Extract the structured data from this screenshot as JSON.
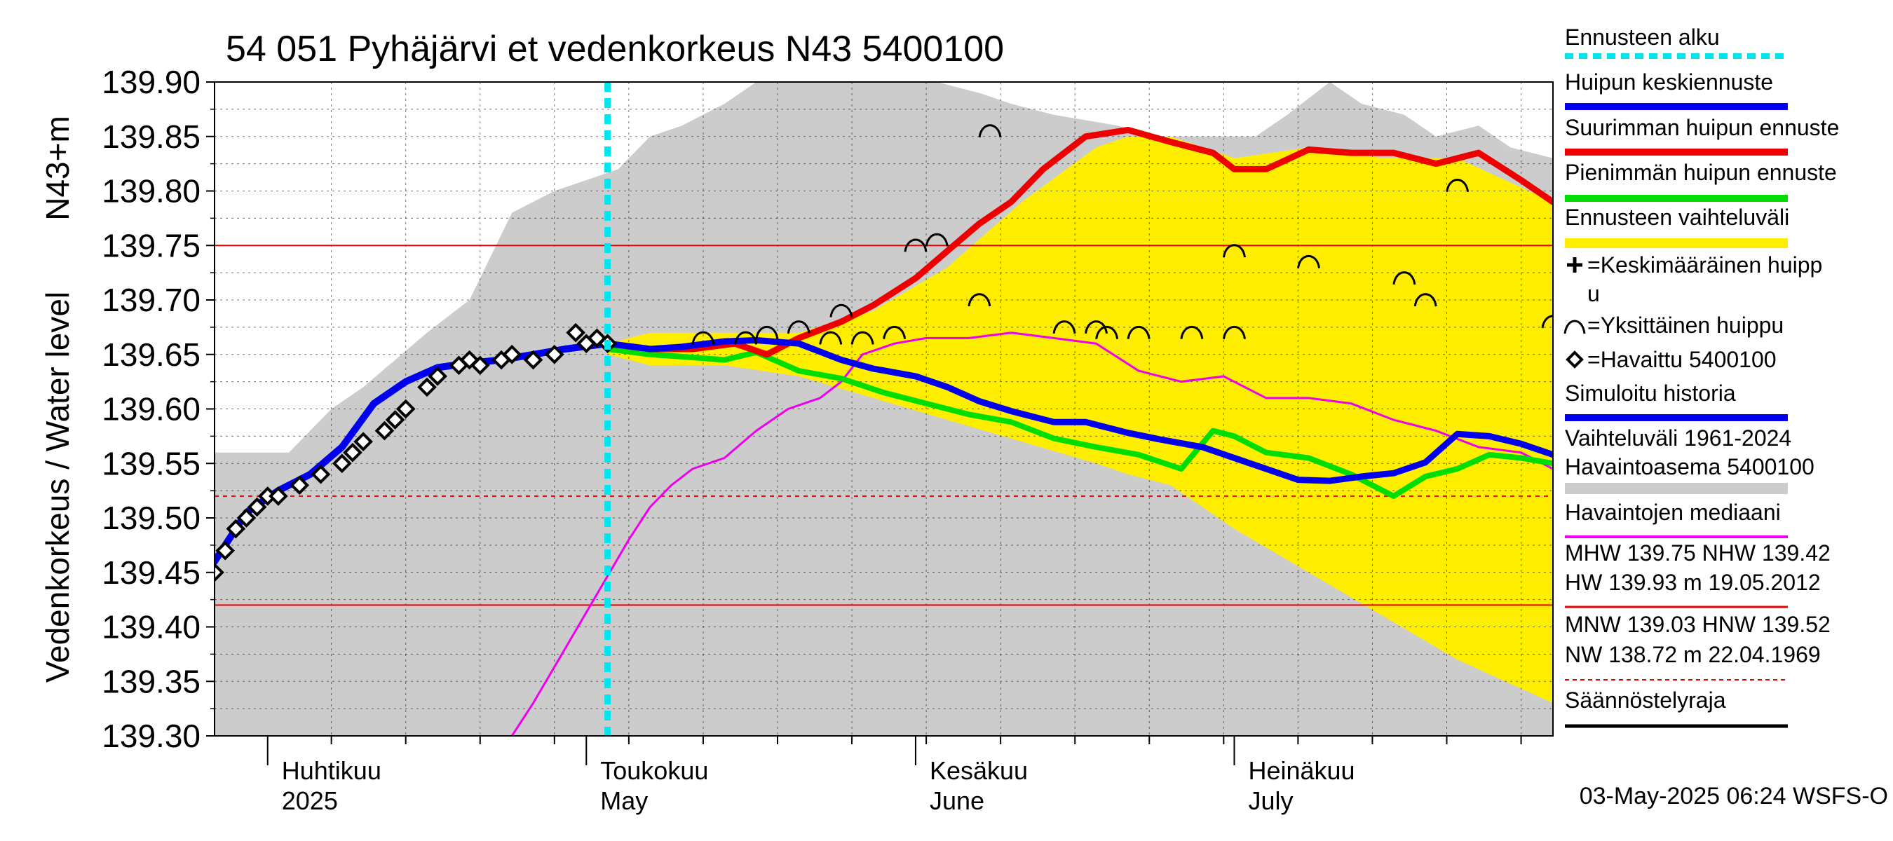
{
  "chart_data": {
    "type": "line",
    "title": "54 051 Pyhäjärvi et vedenkorkeus N43 5400100",
    "ylabel": "Vedenkorkeus / Water level",
    "yunit": "N43+m",
    "ylim": [
      139.3,
      139.9
    ],
    "y_ticks": [
      "139.90",
      "139.85",
      "139.80",
      "139.75",
      "139.70",
      "139.65",
      "139.60",
      "139.55",
      "139.50",
      "139.45",
      "139.40",
      "139.35",
      "139.30"
    ],
    "x_range": [
      "2025-03-27",
      "2025-07-31"
    ],
    "month_labels": [
      {
        "date": "2025-04-01",
        "fi": "Huhtikuu",
        "en": "2025"
      },
      {
        "date": "2025-05-01",
        "fi": "Toukokuu",
        "en": "May"
      },
      {
        "date": "2025-06-01",
        "fi": "Kesäkuu",
        "en": "June"
      },
      {
        "date": "2025-07-01",
        "fi": "Heinäkuu",
        "en": "July"
      }
    ],
    "forecast_start": "2025-05-03",
    "reference_lines": [
      {
        "name": "MHW",
        "value": 139.75,
        "style": "solid"
      },
      {
        "name": "NHW",
        "value": 139.42,
        "style": "solid"
      },
      {
        "name": "HNW",
        "value": 139.52,
        "style": "dashed"
      }
    ],
    "range_1961_2024": {
      "dates": [
        "2025-03-27",
        "2025-04-03",
        "2025-04-07",
        "2025-04-10",
        "2025-04-16",
        "2025-04-20",
        "2025-04-24",
        "2025-04-28",
        "2025-05-01",
        "2025-05-04",
        "2025-05-07",
        "2025-05-10",
        "2025-05-14",
        "2025-05-17",
        "2025-05-24",
        "2025-05-27",
        "2025-06-03",
        "2025-06-07",
        "2025-06-10",
        "2025-06-14",
        "2025-06-20",
        "2025-06-24",
        "2025-06-30",
        "2025-07-03",
        "2025-07-06",
        "2025-07-10",
        "2025-07-13",
        "2025-07-17",
        "2025-07-20",
        "2025-07-24",
        "2025-07-27",
        "2025-07-31"
      ],
      "upper": [
        139.56,
        139.56,
        139.6,
        139.62,
        139.67,
        139.7,
        139.78,
        139.8,
        139.81,
        139.82,
        139.85,
        139.86,
        139.88,
        139.9,
        139.9,
        139.9,
        139.9,
        139.89,
        139.88,
        139.87,
        139.86,
        139.85,
        139.85,
        139.85,
        139.87,
        139.9,
        139.88,
        139.87,
        139.85,
        139.86,
        139.84,
        139.83
      ],
      "lower": [
        139.3,
        139.3,
        139.3,
        139.3,
        139.3,
        139.3,
        139.3,
        139.3,
        139.3,
        139.3,
        139.3,
        139.3,
        139.3,
        139.3,
        139.3,
        139.3,
        139.3,
        139.3,
        139.3,
        139.3,
        139.3,
        139.3,
        139.3,
        139.3,
        139.3,
        139.3,
        139.3,
        139.3,
        139.3,
        139.3,
        139.3,
        139.3
      ]
    },
    "forecast_band": {
      "dates": [
        "2025-05-03",
        "2025-05-07",
        "2025-05-14",
        "2025-05-21",
        "2025-05-28",
        "2025-06-04",
        "2025-06-11",
        "2025-06-18",
        "2025-06-21",
        "2025-06-25",
        "2025-07-01",
        "2025-07-08",
        "2025-07-15",
        "2025-07-22",
        "2025-07-31"
      ],
      "upper": [
        139.66,
        139.67,
        139.67,
        139.67,
        139.69,
        139.73,
        139.79,
        139.84,
        139.85,
        139.85,
        139.83,
        139.84,
        139.83,
        139.83,
        139.79
      ],
      "lower": [
        139.65,
        139.64,
        139.64,
        139.63,
        139.61,
        139.59,
        139.57,
        139.55,
        139.54,
        139.53,
        139.49,
        139.45,
        139.41,
        139.37,
        139.33
      ]
    },
    "series": [
      {
        "name": "Huipun keskiennuste",
        "color": "#0000ee",
        "dates": [
          "2025-05-03",
          "2025-05-07",
          "2025-05-10",
          "2025-05-14",
          "2025-05-17",
          "2025-05-21",
          "2025-05-25",
          "2025-05-28",
          "2025-06-01",
          "2025-06-04",
          "2025-06-07",
          "2025-06-10",
          "2025-06-14",
          "2025-06-17",
          "2025-06-21",
          "2025-06-24",
          "2025-06-28",
          "2025-07-01",
          "2025-07-04",
          "2025-07-07",
          "2025-07-10",
          "2025-07-13",
          "2025-07-16",
          "2025-07-19",
          "2025-07-22",
          "2025-07-25",
          "2025-07-28",
          "2025-07-31"
        ],
        "values": [
          139.66,
          139.655,
          139.657,
          139.662,
          139.663,
          139.66,
          139.645,
          139.637,
          139.63,
          139.62,
          139.607,
          139.598,
          139.588,
          139.588,
          139.578,
          139.572,
          139.565,
          139.555,
          139.545,
          139.535,
          139.534,
          139.538,
          139.541,
          139.551,
          139.577,
          139.575,
          139.568,
          139.558
        ]
      },
      {
        "name": "Suurimman huipun ennuste",
        "color": "#ee0000",
        "dates": [
          "2025-05-03",
          "2025-05-07",
          "2025-05-11",
          "2025-05-15",
          "2025-05-18",
          "2025-05-21",
          "2025-05-25",
          "2025-05-28",
          "2025-06-01",
          "2025-06-04",
          "2025-06-07",
          "2025-06-10",
          "2025-06-13",
          "2025-06-17",
          "2025-06-21",
          "2025-06-25",
          "2025-06-29",
          "2025-07-01",
          "2025-07-04",
          "2025-07-08",
          "2025-07-12",
          "2025-07-16",
          "2025-07-20",
          "2025-07-24",
          "2025-07-28",
          "2025-07-31"
        ],
        "values": [
          139.66,
          139.655,
          139.655,
          139.66,
          139.65,
          139.665,
          139.68,
          139.695,
          139.72,
          139.745,
          139.77,
          139.79,
          139.82,
          139.85,
          139.856,
          139.845,
          139.835,
          139.82,
          139.82,
          139.838,
          139.835,
          139.835,
          139.825,
          139.835,
          139.81,
          139.79
        ]
      },
      {
        "name": "Pienimmän huipun ennuste",
        "color": "#00dd00",
        "dates": [
          "2025-05-03",
          "2025-05-07",
          "2025-05-10",
          "2025-05-14",
          "2025-05-17",
          "2025-05-21",
          "2025-05-25",
          "2025-05-29",
          "2025-06-02",
          "2025-06-06",
          "2025-06-10",
          "2025-06-14",
          "2025-06-18",
          "2025-06-22",
          "2025-06-26",
          "2025-06-29",
          "2025-07-01",
          "2025-07-04",
          "2025-07-08",
          "2025-07-12",
          "2025-07-16",
          "2025-07-19",
          "2025-07-22",
          "2025-07-25",
          "2025-07-28",
          "2025-07-31"
        ],
        "values": [
          139.655,
          139.65,
          139.648,
          139.645,
          139.652,
          139.635,
          139.628,
          139.615,
          139.605,
          139.595,
          139.588,
          139.573,
          139.565,
          139.558,
          139.545,
          139.58,
          139.575,
          139.56,
          139.555,
          139.54,
          139.52,
          139.538,
          139.545,
          139.558,
          139.555,
          139.55
        ]
      },
      {
        "name": "Simuloitu historia",
        "color": "#0000ee",
        "dates": [
          "2025-03-27",
          "2025-03-30",
          "2025-04-02",
          "2025-04-05",
          "2025-04-08",
          "2025-04-11",
          "2025-04-14",
          "2025-04-17",
          "2025-04-20",
          "2025-04-23",
          "2025-04-26",
          "2025-04-29",
          "2025-05-03"
        ],
        "values": [
          139.46,
          139.505,
          139.525,
          139.54,
          139.565,
          139.605,
          139.625,
          139.638,
          139.642,
          139.645,
          139.65,
          139.655,
          139.66
        ]
      },
      {
        "name": "Havaintojen mediaani",
        "color": "#ee00ee",
        "dates": [
          "2025-04-24",
          "2025-04-26",
          "2025-04-29",
          "2025-05-02",
          "2025-05-05",
          "2025-05-07",
          "2025-05-09",
          "2025-05-11",
          "2025-05-14",
          "2025-05-17",
          "2025-05-20",
          "2025-05-23",
          "2025-05-25",
          "2025-05-27",
          "2025-05-30",
          "2025-06-02",
          "2025-06-06",
          "2025-06-10",
          "2025-06-14",
          "2025-06-18",
          "2025-06-22",
          "2025-06-26",
          "2025-06-30",
          "2025-07-04",
          "2025-07-08",
          "2025-07-12",
          "2025-07-16",
          "2025-07-20",
          "2025-07-24",
          "2025-07-28",
          "2025-07-31"
        ],
        "values": [
          139.3,
          139.33,
          139.38,
          139.43,
          139.48,
          139.51,
          139.53,
          139.545,
          139.555,
          139.58,
          139.6,
          139.61,
          139.625,
          139.65,
          139.66,
          139.665,
          139.665,
          139.67,
          139.665,
          139.66,
          139.635,
          139.625,
          139.63,
          139.61,
          139.61,
          139.605,
          139.59,
          139.58,
          139.565,
          139.56,
          139.545
        ]
      }
    ],
    "observed": {
      "name": "Havaittu 5400100",
      "dates": [
        "2025-03-27",
        "2025-03-28",
        "2025-03-29",
        "2025-03-30",
        "2025-03-31",
        "2025-04-01",
        "2025-04-02",
        "2025-04-04",
        "2025-04-06",
        "2025-04-08",
        "2025-04-09",
        "2025-04-10",
        "2025-04-12",
        "2025-04-13",
        "2025-04-14",
        "2025-04-16",
        "2025-04-17",
        "2025-04-19",
        "2025-04-20",
        "2025-04-21",
        "2025-04-23",
        "2025-04-24",
        "2025-04-26",
        "2025-04-28",
        "2025-04-30",
        "2025-05-01",
        "2025-05-02",
        "2025-05-03"
      ],
      "values": [
        139.45,
        139.47,
        139.49,
        139.5,
        139.51,
        139.52,
        139.52,
        139.53,
        139.54,
        139.55,
        139.56,
        139.57,
        139.58,
        139.59,
        139.6,
        139.62,
        139.63,
        139.64,
        139.645,
        139.64,
        139.645,
        139.65,
        139.645,
        139.65,
        139.67,
        139.66,
        139.665,
        139.66
      ]
    },
    "individual_peaks": {
      "dates": [
        "2025-05-12",
        "2025-05-16",
        "2025-05-18",
        "2025-05-21",
        "2025-05-24",
        "2025-05-25",
        "2025-05-27",
        "2025-05-30",
        "2025-06-01",
        "2025-06-03",
        "2025-06-07",
        "2025-06-08",
        "2025-06-15",
        "2025-06-18",
        "2025-06-19",
        "2025-06-22",
        "2025-06-27",
        "2025-07-01",
        "2025-07-01",
        "2025-07-08",
        "2025-07-17",
        "2025-07-19",
        "2025-07-22",
        "2025-07-31"
      ],
      "values": [
        139.665,
        139.665,
        139.67,
        139.675,
        139.665,
        139.69,
        139.665,
        139.67,
        139.75,
        139.755,
        139.7,
        139.855,
        139.675,
        139.675,
        139.67,
        139.67,
        139.67,
        139.745,
        139.67,
        139.735,
        139.72,
        139.7,
        139.805,
        139.68
      ]
    },
    "legend": {
      "position": "right",
      "items": [
        {
          "label": "Ennusteen alku",
          "color": "#00e5ee",
          "style": "dashed"
        },
        {
          "label": "Huipun keskiennuste",
          "color": "#0000ee",
          "style": "solid"
        },
        {
          "label": "Suurimman huipun ennuste",
          "color": "#ee0000",
          "style": "solid"
        },
        {
          "label": "Pienimmän huipun ennuste",
          "color": "#00dd00",
          "style": "solid"
        },
        {
          "label": "Ennusteen vaihteluväli",
          "color": "#ffee00",
          "style": "solid"
        },
        {
          "label_lines": [
            "=Keskimääräinen huipp",
            "u"
          ],
          "marker": "plus"
        },
        {
          "label": "=Yksittäinen huippu",
          "marker": "arc"
        },
        {
          "label": "=Havaittu 5400100",
          "marker": "diamond"
        },
        {
          "label": "Simuloitu historia",
          "color": "#0000ee",
          "style": "solid"
        },
        {
          "label_lines": [
            "Vaihteluväli 1961-2024",
            " Havaintoasema 5400100"
          ],
          "color": "#cccccc",
          "style": "solid"
        },
        {
          "label": "Havaintojen mediaani",
          "color": "#ee00ee",
          "style": "solid"
        },
        {
          "label_lines": [
            "MHW 139.75 NHW 139.42",
            "HW 139.93 m 19.05.2012"
          ],
          "color": "#ee0000",
          "style": "solid"
        },
        {
          "label_lines": [
            "MNW 139.03 HNW 139.52",
            "NW 138.72 m 22.04.1969"
          ],
          "color": "#ee0000",
          "style": "dashed"
        },
        {
          "label": "Säännöstelyraja",
          "color": "#000000",
          "style": "solid"
        }
      ]
    },
    "footer": "03-May-2025 06:24 WSFS-O"
  }
}
